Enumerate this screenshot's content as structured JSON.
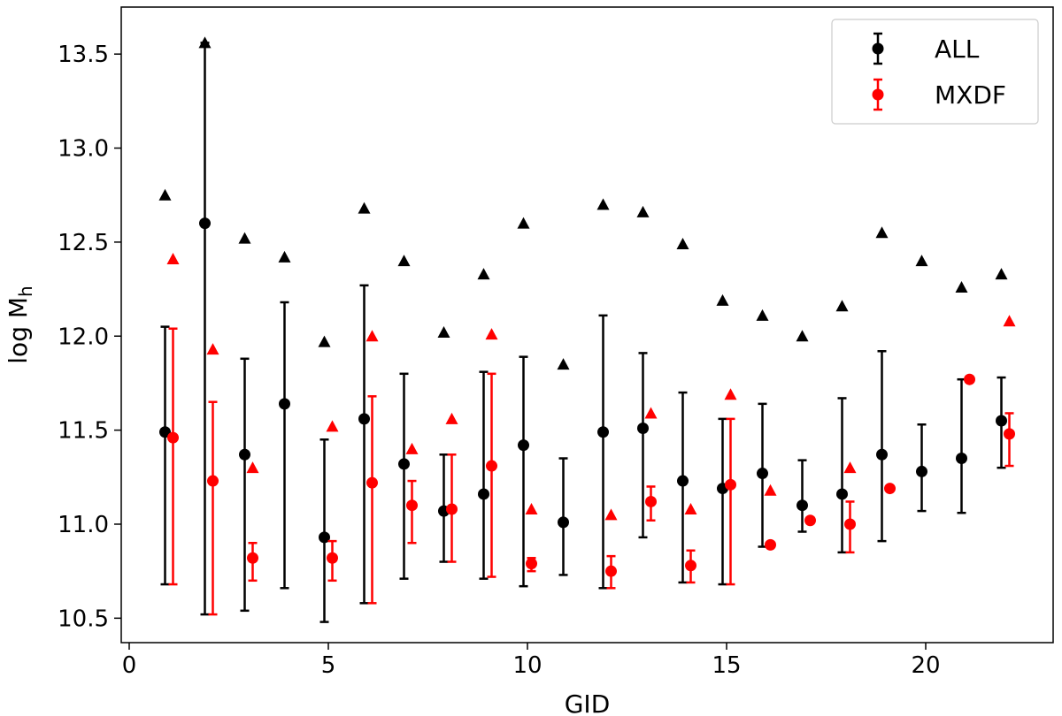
{
  "chart_data": {
    "type": "scatter",
    "title": "",
    "xlabel": "GID",
    "ylabel": "log M",
    "ylabel_sub": "h",
    "xlim": [
      -0.2,
      23.2
    ],
    "ylim": [
      10.37,
      13.75
    ],
    "xticks": [
      0,
      5,
      10,
      15,
      20
    ],
    "yticks": [
      10.5,
      11.0,
      11.5,
      12.0,
      12.5,
      13.0,
      13.5
    ],
    "xtick_labels": [
      "0",
      "5",
      "10",
      "15",
      "20"
    ],
    "ytick_labels": [
      "10.5",
      "11.0",
      "11.5",
      "12.0",
      "12.5",
      "13.0",
      "13.5"
    ],
    "legend_position": "top-right",
    "series": [
      {
        "name": "ALL",
        "color": "#000000",
        "x_offset": -0.1,
        "x": [
          1,
          2,
          3,
          4,
          5,
          6,
          7,
          8,
          9,
          10,
          11,
          12,
          13,
          14,
          15,
          16,
          17,
          18,
          19,
          20,
          21,
          22
        ],
        "y": [
          11.49,
          12.6,
          11.37,
          11.64,
          10.93,
          11.56,
          11.32,
          11.07,
          11.16,
          11.42,
          11.01,
          11.49,
          11.51,
          11.23,
          11.19,
          11.27,
          11.1,
          11.16,
          11.37,
          11.28,
          11.35,
          11.55
        ],
        "y_low": [
          10.68,
          10.52,
          10.54,
          10.66,
          10.48,
          10.58,
          10.71,
          10.8,
          10.71,
          10.67,
          10.73,
          10.66,
          10.93,
          10.69,
          10.68,
          10.88,
          10.96,
          10.85,
          10.91,
          11.07,
          11.06,
          11.3
        ],
        "y_high": [
          12.05,
          13.56,
          11.88,
          12.18,
          11.45,
          12.27,
          11.8,
          11.37,
          11.81,
          11.89,
          11.35,
          12.11,
          11.91,
          11.7,
          11.56,
          11.64,
          11.34,
          11.67,
          11.92,
          11.53,
          11.77,
          11.78
        ],
        "upper_limits": [
          12.75,
          13.56,
          12.52,
          12.42,
          11.97,
          12.68,
          12.4,
          12.02,
          12.33,
          12.6,
          11.85,
          12.7,
          12.66,
          12.49,
          12.19,
          12.11,
          12.0,
          12.16,
          12.55,
          12.4,
          12.26,
          12.33
        ]
      },
      {
        "name": "MXDF",
        "color": "#ff0000",
        "x_offset": 0.1,
        "x": [
          1,
          2,
          3,
          5,
          6,
          7,
          8,
          9,
          10,
          12,
          13,
          14,
          15,
          16,
          17,
          18,
          19,
          21,
          22
        ],
        "y": [
          11.46,
          11.23,
          10.82,
          10.82,
          11.22,
          11.1,
          11.08,
          11.31,
          10.79,
          10.75,
          11.12,
          10.78,
          11.21,
          10.89,
          11.02,
          11.0,
          11.19,
          11.77,
          11.48
        ],
        "y_low": [
          10.68,
          10.52,
          10.7,
          10.7,
          10.58,
          10.9,
          10.8,
          10.72,
          10.75,
          10.66,
          11.02,
          10.69,
          10.68,
          10.89,
          11.02,
          10.85,
          11.19,
          11.77,
          11.31
        ],
        "y_high": [
          12.04,
          11.65,
          10.9,
          10.91,
          11.68,
          11.23,
          11.37,
          11.8,
          10.82,
          10.83,
          11.2,
          10.86,
          11.56,
          10.89,
          11.02,
          11.12,
          11.19,
          11.77,
          11.59
        ],
        "upper_limits": [
          12.41,
          11.93,
          11.3,
          11.52,
          12.0,
          11.4,
          11.56,
          12.01,
          11.08,
          11.05,
          11.59,
          11.08,
          11.69,
          11.18,
          null,
          11.3,
          null,
          null,
          12.08
        ]
      }
    ]
  }
}
